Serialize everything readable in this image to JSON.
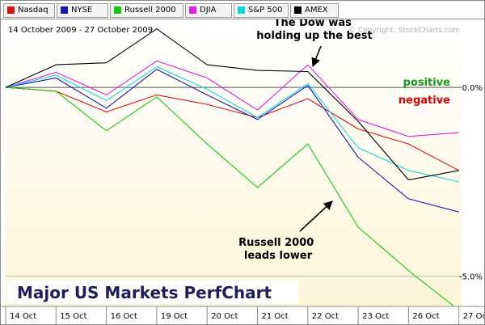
{
  "chart_data": {
    "type": "line",
    "date_range": "14 October 2009 - 27 October 2009",
    "watermark": "© Copyright, StockCharts.com",
    "title": "Major US Markets PerfChart",
    "categories": [
      "14 Oct",
      "15 Oct",
      "16 Oct",
      "19 Oct",
      "20 Oct",
      "21 Oct",
      "22 Oct",
      "23 Oct",
      "26 Oct",
      "27 Oct"
    ],
    "ylim": [
      -5.8,
      1.8
    ],
    "y_ticks": [
      {
        "value": 0,
        "label": "0.0%"
      },
      {
        "value": -5,
        "label": "-5.0%"
      }
    ],
    "series": [
      {
        "name": "Nasdaq",
        "color": "#e01010",
        "values": [
          0.0,
          -0.1,
          -0.65,
          -0.2,
          -0.45,
          -0.8,
          -0.3,
          -1.1,
          -1.5,
          -2.2
        ]
      },
      {
        "name": "NYSE",
        "color": "#1a1ab0",
        "values": [
          0.0,
          0.25,
          -0.55,
          0.48,
          -0.2,
          -0.85,
          0.05,
          -1.85,
          -2.95,
          -3.3
        ]
      },
      {
        "name": "Russell 2000",
        "color": "#11cc11",
        "values": [
          0.0,
          -0.1,
          -1.15,
          -0.25,
          -1.5,
          -2.65,
          -1.5,
          -3.7,
          -4.85,
          -5.9
        ]
      },
      {
        "name": "DJIA",
        "color": "#e020e0",
        "values": [
          0.0,
          0.4,
          -0.2,
          0.7,
          0.25,
          -0.6,
          0.6,
          -0.85,
          -1.3,
          -1.2
        ]
      },
      {
        "name": "S&P 500",
        "color": "#10d8d8",
        "values": [
          0.0,
          0.33,
          -0.35,
          0.55,
          -0.05,
          -0.8,
          0.1,
          -1.6,
          -2.2,
          -2.5
        ]
      },
      {
        "name": "AMEX",
        "color": "#000000",
        "values": [
          0.0,
          0.6,
          0.65,
          1.55,
          0.6,
          0.45,
          0.42,
          -0.9,
          -2.45,
          -2.2
        ]
      }
    ],
    "labels": {
      "positive": "positive",
      "negative": "negative"
    },
    "annotations": [
      {
        "lines": [
          "The Dow was",
          "holding up the best"
        ]
      },
      {
        "lines": [
          "Russell 2000",
          "leads lower"
        ]
      }
    ],
    "colors": {
      "positive": "#1a9a1a",
      "negative": "#dd0000",
      "title": "#1e1e5a",
      "bg_top": "#ffffff",
      "bg_bottom": "#fbf6d8"
    }
  }
}
